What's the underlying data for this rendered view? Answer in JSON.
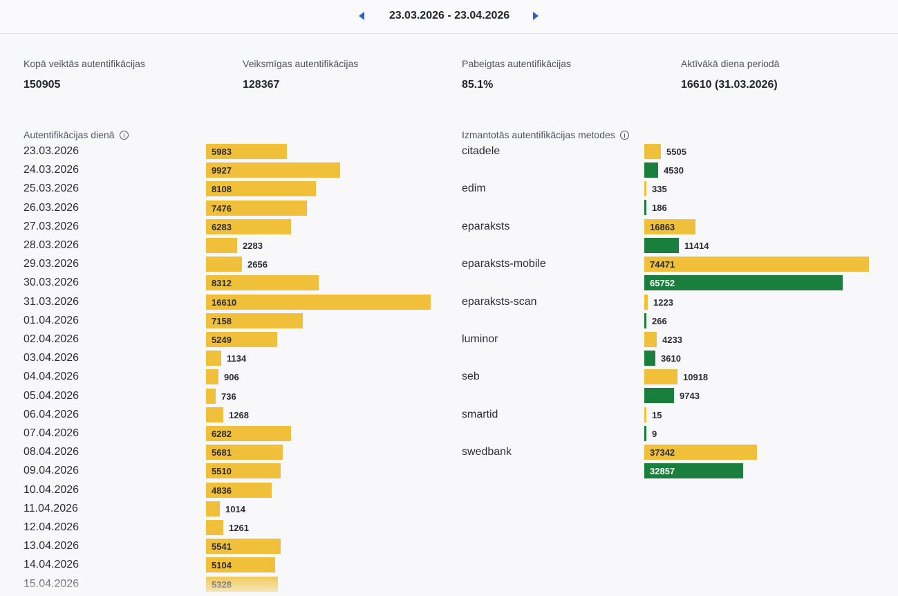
{
  "header": {
    "date_range": "23.03.2026 - 23.04.2026"
  },
  "stats": [
    {
      "label": "Kopā veiktās autentifikācijas",
      "value": "150905"
    },
    {
      "label": "Veiksmīgas autentifikācijas",
      "value": "128367"
    },
    {
      "label": "Pabeigtas autentifikācijas",
      "value": "85.1%"
    },
    {
      "label": "Aktīvākā diena periodā",
      "value": "16610 (31.03.2026)"
    }
  ],
  "colors": {
    "attempted": "#f0c03a",
    "successful": "#1a7f3c",
    "accent": "#2d5fd1"
  },
  "chart_data": [
    {
      "type": "bar",
      "title": "Autentifikācijas dienā",
      "categories": [
        "23.03.2026",
        "24.03.2026",
        "25.03.2026",
        "26.03.2026",
        "27.03.2026",
        "28.03.2026",
        "29.03.2026",
        "30.03.2026",
        "31.03.2026",
        "01.04.2026",
        "02.04.2026",
        "03.04.2026",
        "04.04.2026",
        "05.04.2026",
        "06.04.2026",
        "07.04.2026",
        "08.04.2026",
        "09.04.2026",
        "10.04.2026",
        "11.04.2026",
        "12.04.2026",
        "13.04.2026",
        "14.04.2026",
        "15.04.2026"
      ],
      "values": [
        5983,
        9927,
        8108,
        7476,
        6283,
        2283,
        2656,
        8312,
        16610,
        7158,
        5249,
        1134,
        906,
        736,
        1268,
        6282,
        5681,
        5510,
        4836,
        1014,
        1261,
        5541,
        5104,
        5328
      ]
    },
    {
      "type": "bar",
      "title": "Izmantotās autentifikācijas metodes",
      "categories": [
        "citadele",
        "edim",
        "eparaksts",
        "eparaksts-mobile",
        "eparaksts-scan",
        "luminor",
        "seb",
        "smartid",
        "swedbank"
      ],
      "series": [
        {
          "values": [
            5505,
            335,
            16863,
            74471,
            1223,
            4233,
            10918,
            15,
            37342
          ]
        },
        {
          "values": [
            4530,
            186,
            11414,
            65752,
            266,
            3610,
            9743,
            9,
            32857
          ]
        }
      ]
    }
  ]
}
